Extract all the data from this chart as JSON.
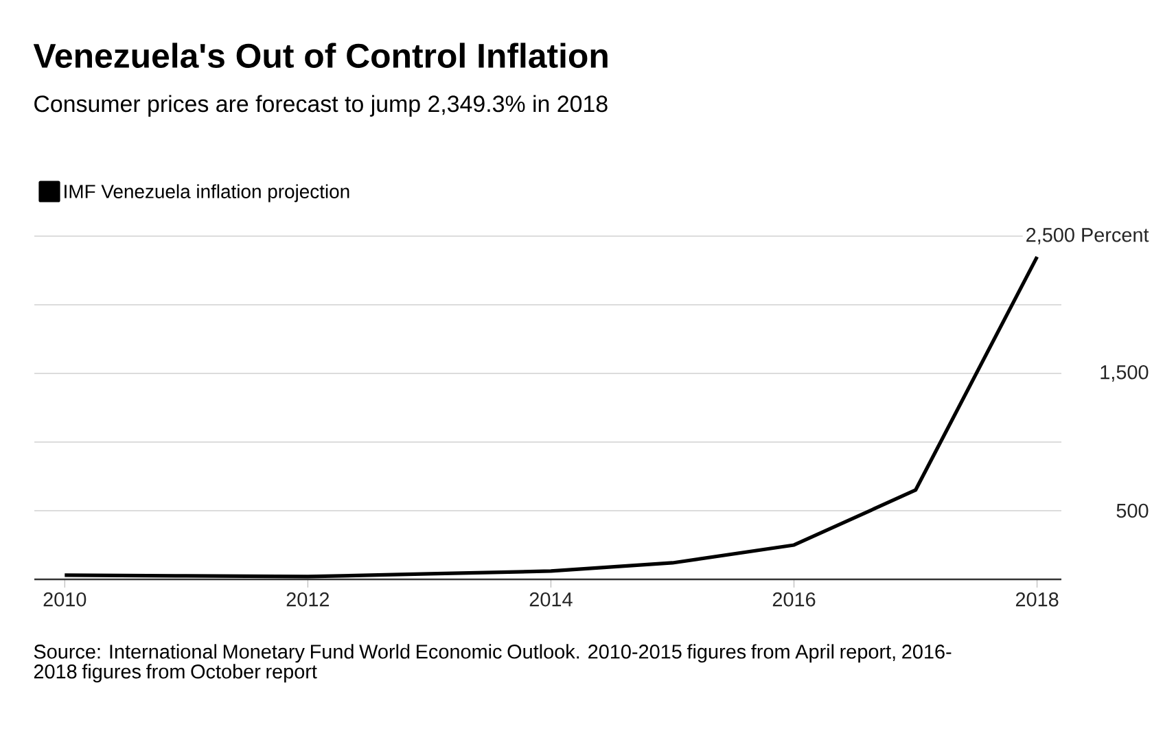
{
  "chart_data": {
    "type": "line",
    "title": "Venezuela's Out of Control Inflation",
    "subtitle": "Consumer prices are forecast to jump 2,349.3% in 2018",
    "annotations": [
      "Source: International Monetary Fund World Economic Outlook. 2010-2015 figures from April report, 2016-2018 figures from October report"
    ],
    "x": [
      2010,
      2011,
      2012,
      2013,
      2014,
      2015,
      2016,
      2017,
      2018
    ],
    "series": [
      {
        "name": "IMF Venezuela inflation projection",
        "color": "#000000",
        "values": [
          30,
          25,
          20,
          40,
          60,
          120,
          250,
          650,
          2349.3
        ]
      }
    ],
    "xlim": [
      2009.75,
      2018.2
    ],
    "xticks": [
      2010,
      2012,
      2014,
      2016,
      2018
    ],
    "ylim": [
      0,
      2500
    ],
    "yticks": [
      {
        "value": 0,
        "label": null
      },
      500,
      {
        "value": 1000,
        "label": null
      },
      {
        "value": 1500,
        "label": "1,500"
      },
      {
        "value": 2000,
        "label": null
      },
      {
        "value": 2500,
        "label": "2,500 Percent"
      }
    ],
    "grid": "y",
    "legend": "top left",
    "marker": "none",
    "line_style": "solid"
  }
}
